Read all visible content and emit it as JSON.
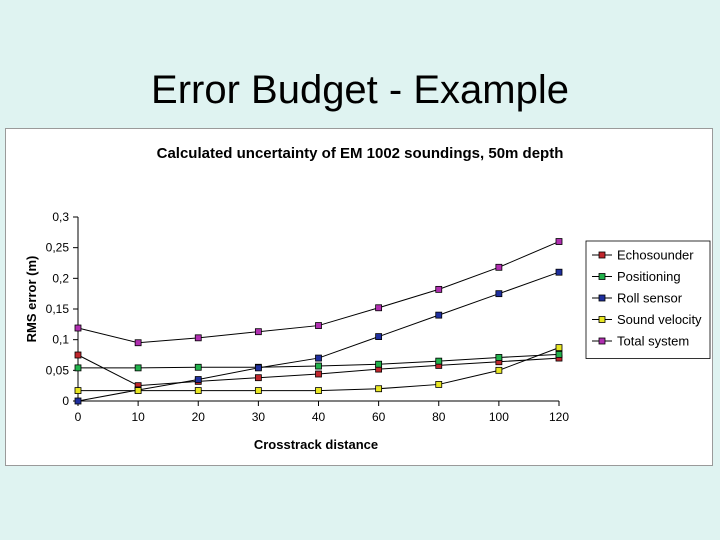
{
  "slide": {
    "title": "Error Budget - Example"
  },
  "chart_data": {
    "type": "line",
    "title": "Calculated uncertainty of EM 1002 soundings, 50m depth",
    "xlabel": "Crosstrack distance",
    "ylabel": "RMS error (m)",
    "categories": [
      "0",
      "10",
      "20",
      "30",
      "40",
      "60",
      "80",
      "100",
      "120"
    ],
    "y_ticks": [
      "0",
      "0,05",
      "0,1",
      "0,15",
      "0,2",
      "0,25",
      "0,3"
    ],
    "ylim": [
      0,
      0.3
    ],
    "grid": false,
    "legend_position": "right",
    "series": [
      {
        "name": "Echosounder",
        "color": "#c0262c",
        "values": [
          0.075,
          0.025,
          0.032,
          0.038,
          0.044,
          0.052,
          0.058,
          0.064,
          0.07
        ]
      },
      {
        "name": "Positioning",
        "color": "#22b24c",
        "values": [
          0.054,
          0.054,
          0.055,
          0.055,
          0.057,
          0.06,
          0.065,
          0.071,
          0.076
        ]
      },
      {
        "name": "Roll sensor",
        "color": "#1f2f9e",
        "values": [
          0.0,
          0.018,
          0.035,
          0.054,
          0.07,
          0.105,
          0.14,
          0.175,
          0.21
        ]
      },
      {
        "name": "Sound velocity",
        "color": "#e8e622",
        "values": [
          0.017,
          0.017,
          0.017,
          0.017,
          0.017,
          0.02,
          0.027,
          0.05,
          0.087
        ]
      },
      {
        "name": "Total system",
        "color": "#b02fb0",
        "values": [
          0.119,
          0.095,
          0.103,
          0.113,
          0.123,
          0.152,
          0.182,
          0.218,
          0.26
        ]
      }
    ]
  }
}
